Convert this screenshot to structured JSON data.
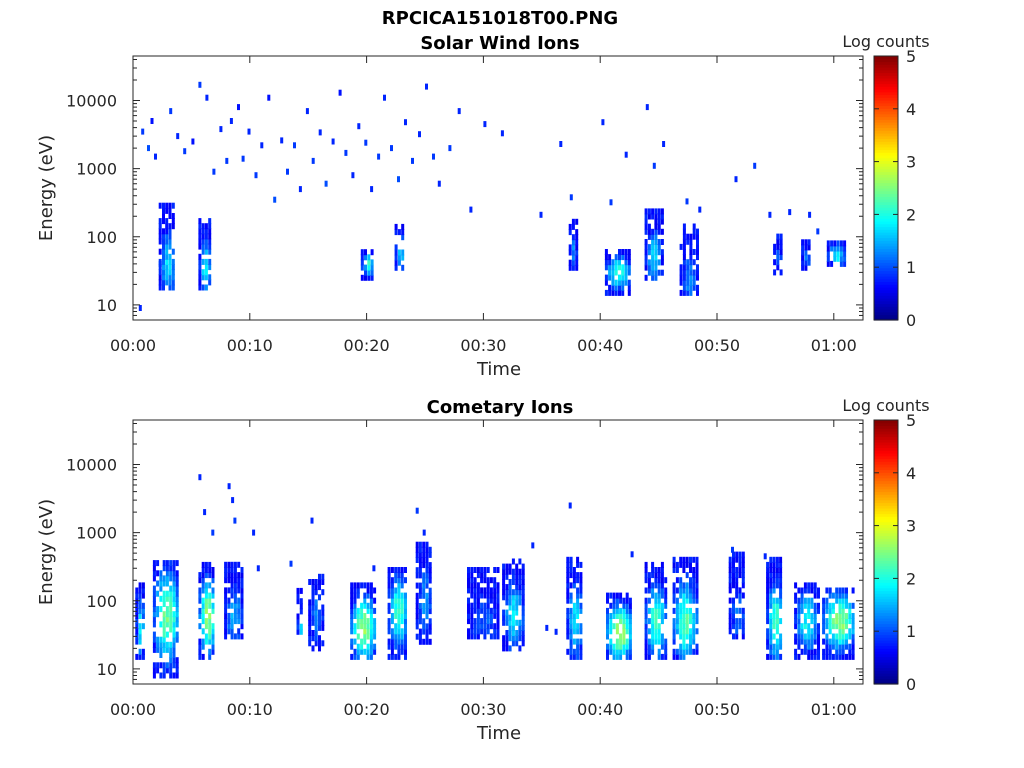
{
  "figure_title": "RPCICA151018T00.PNG",
  "chart_data": [
    {
      "type": "heatmap",
      "title": "Solar Wind Ions",
      "xlabel": "Time",
      "ylabel": "Energy (eV)",
      "x_ticks": [
        "00:00",
        "00:10",
        "00:20",
        "00:30",
        "00:40",
        "00:50",
        "01:00"
      ],
      "x_range_min": [
        0,
        62.5
      ],
      "y_ticks": [
        "10",
        "100",
        "1000",
        "10000"
      ],
      "y_scale": "log",
      "y_range_eV": [
        6,
        45000
      ],
      "colorbar": {
        "label": "Log counts",
        "ticks": [
          "0",
          "1",
          "2",
          "3",
          "4",
          "5"
        ],
        "range": [
          0,
          5
        ],
        "colormap": "jet"
      },
      "scatter_events": [
        [
          0.5,
          9,
          0.8
        ],
        [
          0.7,
          3500,
          0.9
        ],
        [
          1.2,
          2000,
          1.0
        ],
        [
          1.8,
          1500,
          0.8
        ],
        [
          1.5,
          5000,
          0.7
        ],
        [
          2.2,
          40,
          1.1
        ],
        [
          3.1,
          7000,
          0.9
        ],
        [
          3.7,
          3000,
          0.8
        ],
        [
          4.3,
          1800,
          0.9
        ],
        [
          5.0,
          2500,
          0.7
        ],
        [
          5.6,
          17000,
          0.9
        ],
        [
          6.2,
          11000,
          0.8
        ],
        [
          6.8,
          900,
          0.9
        ],
        [
          7.4,
          3800,
          0.8
        ],
        [
          7.9,
          1300,
          0.9
        ],
        [
          8.3,
          5000,
          0.8
        ],
        [
          8.9,
          8000,
          0.7
        ],
        [
          9.3,
          1400,
          0.9
        ],
        [
          9.8,
          3500,
          0.8
        ],
        [
          10.4,
          800,
          0.9
        ],
        [
          10.9,
          2200,
          0.8
        ],
        [
          11.5,
          11000,
          0.7
        ],
        [
          12.0,
          350,
          1.0
        ],
        [
          12.6,
          2600,
          0.8
        ],
        [
          13.1,
          900,
          0.9
        ],
        [
          13.7,
          2200,
          0.9
        ],
        [
          14.2,
          500,
          0.8
        ],
        [
          14.8,
          7000,
          0.8
        ],
        [
          15.3,
          1300,
          0.9
        ],
        [
          15.9,
          3400,
          0.8
        ],
        [
          16.4,
          600,
          1.0
        ],
        [
          17.0,
          2500,
          0.8
        ],
        [
          17.6,
          13000,
          0.7
        ],
        [
          18.1,
          1700,
          0.9
        ],
        [
          18.7,
          800,
          0.8
        ],
        [
          19.2,
          4200,
          0.8
        ],
        [
          19.8,
          2400,
          0.9
        ],
        [
          20.3,
          500,
          0.8
        ],
        [
          20.9,
          1500,
          0.9
        ],
        [
          21.4,
          11000,
          0.8
        ],
        [
          22.0,
          2000,
          0.9
        ],
        [
          22.6,
          700,
          1.0
        ],
        [
          23.2,
          4800,
          0.8
        ],
        [
          23.8,
          1300,
          0.9
        ],
        [
          24.4,
          3200,
          0.8
        ],
        [
          25.0,
          16000,
          0.8
        ],
        [
          25.6,
          1500,
          0.9
        ],
        [
          26.1,
          600,
          0.8
        ],
        [
          27.0,
          2000,
          0.9
        ],
        [
          27.8,
          7000,
          0.8
        ],
        [
          28.8,
          250,
          0.8
        ],
        [
          30.0,
          4500,
          0.8
        ],
        [
          31.5,
          3300,
          0.8
        ],
        [
          34.8,
          210,
          0.8
        ],
        [
          36.5,
          2300,
          0.8
        ],
        [
          37.4,
          380,
          0.9
        ],
        [
          40.1,
          4800,
          0.8
        ],
        [
          40.8,
          320,
          0.9
        ],
        [
          42.1,
          1600,
          0.8
        ],
        [
          43.9,
          8000,
          0.8
        ],
        [
          44.5,
          1100,
          0.9
        ],
        [
          45.3,
          2300,
          0.8
        ],
        [
          47.3,
          330,
          0.9
        ],
        [
          48.4,
          250,
          0.8
        ],
        [
          51.5,
          700,
          0.8
        ],
        [
          53.1,
          1100,
          0.9
        ],
        [
          54.4,
          210,
          0.8
        ],
        [
          56.1,
          230,
          0.8
        ],
        [
          57.8,
          210,
          0.8
        ],
        [
          58.5,
          120,
          0.9
        ]
      ],
      "bursts": [
        {
          "t": [
            2.2,
            3.6
          ],
          "e": [
            18,
            300
          ],
          "peak_e": 40,
          "peak_log": 1.7
        },
        {
          "t": [
            5.6,
            6.6
          ],
          "e": [
            18,
            200
          ],
          "peak_e": 35,
          "peak_log": 1.8
        },
        {
          "t": [
            19.5,
            20.6
          ],
          "e": [
            25,
            60
          ],
          "peak_e": 40,
          "peak_log": 2.0
        },
        {
          "t": [
            22.4,
            23.2
          ],
          "e": [
            35,
            150
          ],
          "peak_e": 60,
          "peak_log": 1.8
        },
        {
          "t": [
            37.3,
            37.9
          ],
          "e": [
            35,
            170
          ],
          "peak_e": 60,
          "peak_log": 1.3
        },
        {
          "t": [
            40.4,
            42.5
          ],
          "e": [
            15,
            60
          ],
          "peak_e": 30,
          "peak_log": 2.1
        },
        {
          "t": [
            43.8,
            45.2
          ],
          "e": [
            25,
            280
          ],
          "peak_e": 50,
          "peak_log": 1.7
        },
        {
          "t": [
            46.8,
            48.3
          ],
          "e": [
            15,
            160
          ],
          "peak_e": 25,
          "peak_log": 1.3
        },
        {
          "t": [
            54.8,
            55.5
          ],
          "e": [
            30,
            110
          ],
          "peak_e": 50,
          "peak_log": 1.1
        },
        {
          "t": [
            57.2,
            58.0
          ],
          "e": [
            35,
            90
          ],
          "peak_e": 50,
          "peak_log": 1.2
        },
        {
          "t": [
            59.4,
            60.9
          ],
          "e": [
            40,
            80
          ],
          "peak_e": 55,
          "peak_log": 1.9
        }
      ]
    },
    {
      "type": "heatmap",
      "title": "Cometary Ions",
      "xlabel": "Time",
      "ylabel": "Energy (eV)",
      "x_ticks": [
        "00:00",
        "00:10",
        "00:20",
        "00:30",
        "00:40",
        "00:50",
        "01:00"
      ],
      "x_range_min": [
        0,
        62.5
      ],
      "y_ticks": [
        "10",
        "100",
        "1000",
        "10000"
      ],
      "y_scale": "log",
      "y_range_eV": [
        6,
        45000
      ],
      "colorbar": {
        "label": "Log counts",
        "ticks": [
          "0",
          "1",
          "2",
          "3",
          "4",
          "5"
        ],
        "range": [
          0,
          5
        ],
        "colormap": "jet"
      },
      "scatter_events": [
        [
          5.6,
          6500,
          0.8
        ],
        [
          6.0,
          2000,
          0.8
        ],
        [
          6.7,
          1000,
          0.9
        ],
        [
          8.1,
          4800,
          0.8
        ],
        [
          8.4,
          3000,
          0.8
        ],
        [
          8.6,
          1500,
          0.9
        ],
        [
          10.2,
          1000,
          0.8
        ],
        [
          15.2,
          1500,
          0.8
        ],
        [
          24.2,
          2100,
          0.9
        ],
        [
          24.8,
          1000,
          0.8
        ],
        [
          34.1,
          650,
          0.8
        ],
        [
          37.3,
          2500,
          0.8
        ],
        [
          42.6,
          480,
          0.8
        ],
        [
          51.2,
          560,
          0.9
        ],
        [
          54.0,
          450,
          0.8
        ],
        [
          10.6,
          300,
          0.8
        ],
        [
          13.4,
          350,
          0.9
        ],
        [
          20.5,
          300,
          0.8
        ],
        [
          35.3,
          40,
          0.8
        ],
        [
          36.1,
          35,
          0.8
        ]
      ],
      "bursts": [
        {
          "t": [
            0.2,
            0.9
          ],
          "e": [
            15,
            200
          ],
          "peak_e": 40,
          "peak_log": 1.8
        },
        {
          "t": [
            1.7,
            3.9
          ],
          "e": [
            8,
            380
          ],
          "peak_e": 60,
          "peak_log": 2.4
        },
        {
          "t": [
            5.6,
            7.0
          ],
          "e": [
            15,
            350
          ],
          "peak_e": 60,
          "peak_log": 2.6
        },
        {
          "t": [
            7.8,
            9.3
          ],
          "e": [
            30,
            400
          ],
          "peak_e": 60,
          "peak_log": 1.5
        },
        {
          "t": [
            14.0,
            14.5
          ],
          "e": [
            35,
            150
          ],
          "peak_e": 40,
          "peak_log": 1.7
        },
        {
          "t": [
            15.0,
            16.2
          ],
          "e": [
            20,
            250
          ],
          "peak_e": 60,
          "peak_log": 1.3
        },
        {
          "t": [
            18.6,
            20.7
          ],
          "e": [
            15,
            200
          ],
          "peak_e": 40,
          "peak_log": 2.6
        },
        {
          "t": [
            21.8,
            23.4
          ],
          "e": [
            15,
            300
          ],
          "peak_e": 70,
          "peak_log": 2.2
        },
        {
          "t": [
            24.2,
            25.6
          ],
          "e": [
            25,
            700
          ],
          "peak_e": 100,
          "peak_log": 1.3
        },
        {
          "t": [
            28.6,
            31.4
          ],
          "e": [
            30,
            300
          ],
          "peak_e": 50,
          "peak_log": 1.1
        },
        {
          "t": [
            31.6,
            33.4
          ],
          "e": [
            20,
            400
          ],
          "peak_e": 60,
          "peak_log": 1.8
        },
        {
          "t": [
            37.1,
            38.4
          ],
          "e": [
            15,
            400
          ],
          "peak_e": 50,
          "peak_log": 1.8
        },
        {
          "t": [
            40.5,
            42.6
          ],
          "e": [
            15,
            140
          ],
          "peak_e": 35,
          "peak_log": 2.8
        },
        {
          "t": [
            43.8,
            45.6
          ],
          "e": [
            15,
            380
          ],
          "peak_e": 50,
          "peak_log": 2.2
        },
        {
          "t": [
            46.2,
            48.2
          ],
          "e": [
            15,
            400
          ],
          "peak_e": 50,
          "peak_log": 2.3
        },
        {
          "t": [
            51.0,
            52.4
          ],
          "e": [
            30,
            500
          ],
          "peak_e": 60,
          "peak_log": 1.2
        },
        {
          "t": [
            54.2,
            55.6
          ],
          "e": [
            15,
            400
          ],
          "peak_e": 50,
          "peak_log": 2.2
        },
        {
          "t": [
            56.6,
            58.6
          ],
          "e": [
            15,
            200
          ],
          "peak_e": 50,
          "peak_log": 1.9
        },
        {
          "t": [
            59.0,
            61.8
          ],
          "e": [
            15,
            150
          ],
          "peak_e": 50,
          "peak_log": 2.6
        }
      ]
    }
  ]
}
